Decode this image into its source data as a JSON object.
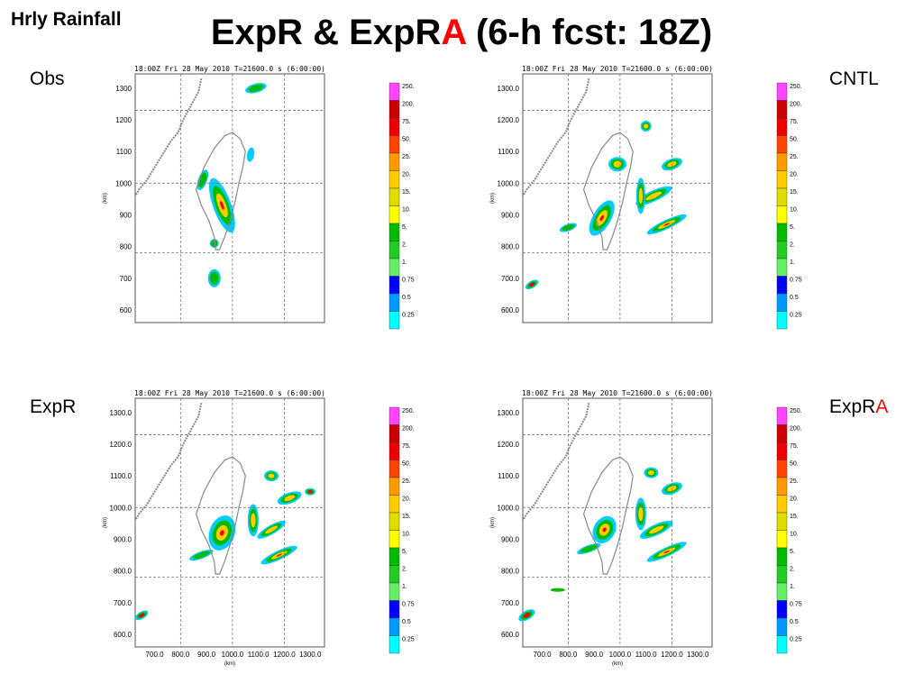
{
  "header": {
    "corner_label": "Hrly Rainfall",
    "title_prefix": "ExpR & ExpR",
    "title_highlight": "A",
    "title_suffix": " (6-h fcst: 18Z)",
    "highlight_color": "#ff0000"
  },
  "panels": [
    {
      "id": "obs",
      "label": "Obs",
      "label_highlight": "",
      "side": "left",
      "show_x_ticks": false
    },
    {
      "id": "cntl",
      "label": "CNTL",
      "label_highlight": "",
      "side": "right",
      "show_x_ticks": false
    },
    {
      "id": "expr",
      "label": "ExpR",
      "label_highlight": "",
      "side": "left",
      "show_x_ticks": true
    },
    {
      "id": "expra",
      "label": "ExpR",
      "label_highlight": "A",
      "side": "right",
      "show_x_ticks": true
    }
  ],
  "plot": {
    "header_text": "18:00Z Fri 28 May 2010     T=21600.0 s (6:00:00)",
    "y_axis_label": "(km)",
    "x_axis_label": "(km)",
    "y_ticks_obs": [
      "1300",
      "1200",
      "1100",
      "1000",
      "900",
      "800",
      "700",
      "600"
    ],
    "y_ticks": [
      "1300.0",
      "1200.0",
      "1100.0",
      "1000.0",
      "900.0",
      "800.0",
      "700.0",
      "600.0"
    ],
    "y_tick_values": [
      1300,
      1200,
      1100,
      1000,
      900,
      800,
      700,
      600
    ],
    "x_ticks": [
      "700.0",
      "800.0",
      "900.0",
      "1000.0",
      "1100.0",
      "1200.0",
      "1300.0"
    ],
    "x_tick_values": [
      700,
      800,
      900,
      1000,
      1100,
      1200,
      1300
    ],
    "x_range": [
      625,
      1355
    ],
    "y_range": [
      560,
      1345
    ]
  },
  "colorbar": {
    "labels": [
      "250.",
      "200.",
      "75.",
      "50.",
      "25.",
      "20.",
      "15.",
      "10.",
      "5.",
      "2.",
      "1.",
      "0.75",
      "0.5",
      "0.25"
    ],
    "colors": [
      "#ff44ff",
      "#cc0000",
      "#ee0000",
      "#ff4400",
      "#ff9900",
      "#ffcc00",
      "#dddd00",
      "#ffff00",
      "#00bb00",
      "#22cc22",
      "#66ee66",
      "#0000ff",
      "#0099ff",
      "#00ffff"
    ]
  }
}
